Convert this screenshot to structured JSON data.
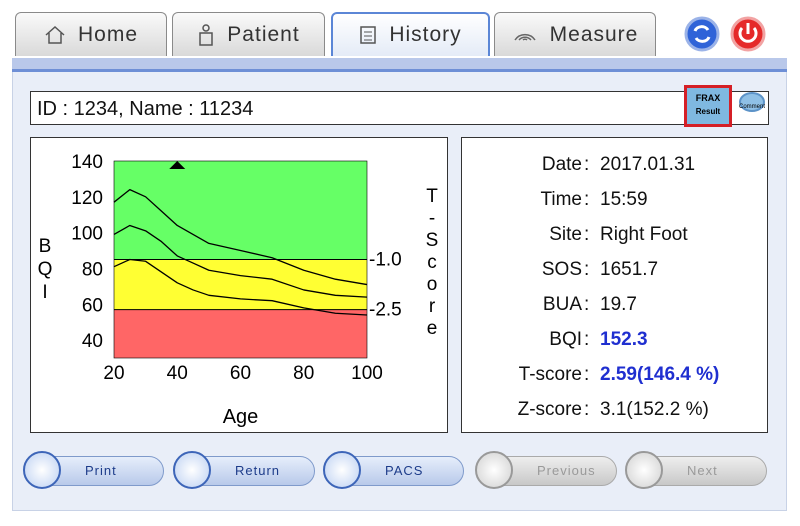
{
  "tabs": [
    "Home",
    "Patient",
    "History",
    "Measure"
  ],
  "patient_line": "ID : 1234, Name : 11234",
  "frax_button": {
    "line1": "FRAX",
    "line2": "Result"
  },
  "comment_button": "Comment",
  "chart_data": {
    "type": "line",
    "xlabel": "Age",
    "ylabel": "BQI",
    "y2label": "T-Score",
    "x": [
      20,
      25,
      30,
      35,
      40,
      45,
      50,
      60,
      70,
      80,
      90,
      100
    ],
    "series": [
      {
        "color": "#000000",
        "values": [
          117,
          124,
          120,
          112,
          104,
          99,
          94,
          90,
          86,
          79,
          74,
          71
        ]
      },
      {
        "color": "#000000",
        "values": [
          99,
          104,
          101,
          95,
          87,
          83,
          79,
          76,
          74,
          68,
          65,
          64
        ]
      },
      {
        "color": "#000000",
        "values": [
          81,
          85,
          84,
          78,
          72,
          68,
          65,
          63,
          62,
          58,
          55,
          54
        ]
      }
    ],
    "xlim": [
      20,
      100
    ],
    "xticks": [
      20,
      40,
      60,
      80,
      100
    ],
    "ylim": [
      30,
      140
    ],
    "yticks": [
      40,
      60,
      80,
      100,
      120,
      140
    ],
    "y2lim": [
      -3.95,
      1.95
    ],
    "y2ticks": [
      {
        "value": -1,
        "label": "-1.0"
      },
      {
        "value": -2.5,
        "label": "-2.5"
      }
    ],
    "zone_colors": [
      "#66ff66",
      "#ffff33",
      "#ff6666"
    ],
    "marker_x": 40
  },
  "results": {
    "separator": ":",
    "rows": [
      {
        "label": "Date",
        "value": "2017.01.31",
        "highlight": false
      },
      {
        "label": "Time",
        "value": "15:59",
        "highlight": false
      },
      {
        "label": "Site",
        "value": "Right Foot",
        "highlight": false
      },
      {
        "label": "SOS",
        "value": "1651.7",
        "highlight": false
      },
      {
        "label": "BUA",
        "value": "19.7",
        "highlight": false
      },
      {
        "label": "BQI",
        "value": "152.3",
        "highlight": true
      },
      {
        "label": "T-score",
        "value": "2.59(146.4 %)",
        "highlight": true
      },
      {
        "label": "Z-score",
        "value": "3.1(152.2 %)",
        "highlight": false
      }
    ]
  },
  "buttons": [
    {
      "label": "Print",
      "enabled": true
    },
    {
      "label": "Return",
      "enabled": true
    },
    {
      "label": "PACS",
      "enabled": true
    },
    {
      "label": "Previous",
      "enabled": false
    },
    {
      "label": "Next",
      "enabled": false
    }
  ]
}
